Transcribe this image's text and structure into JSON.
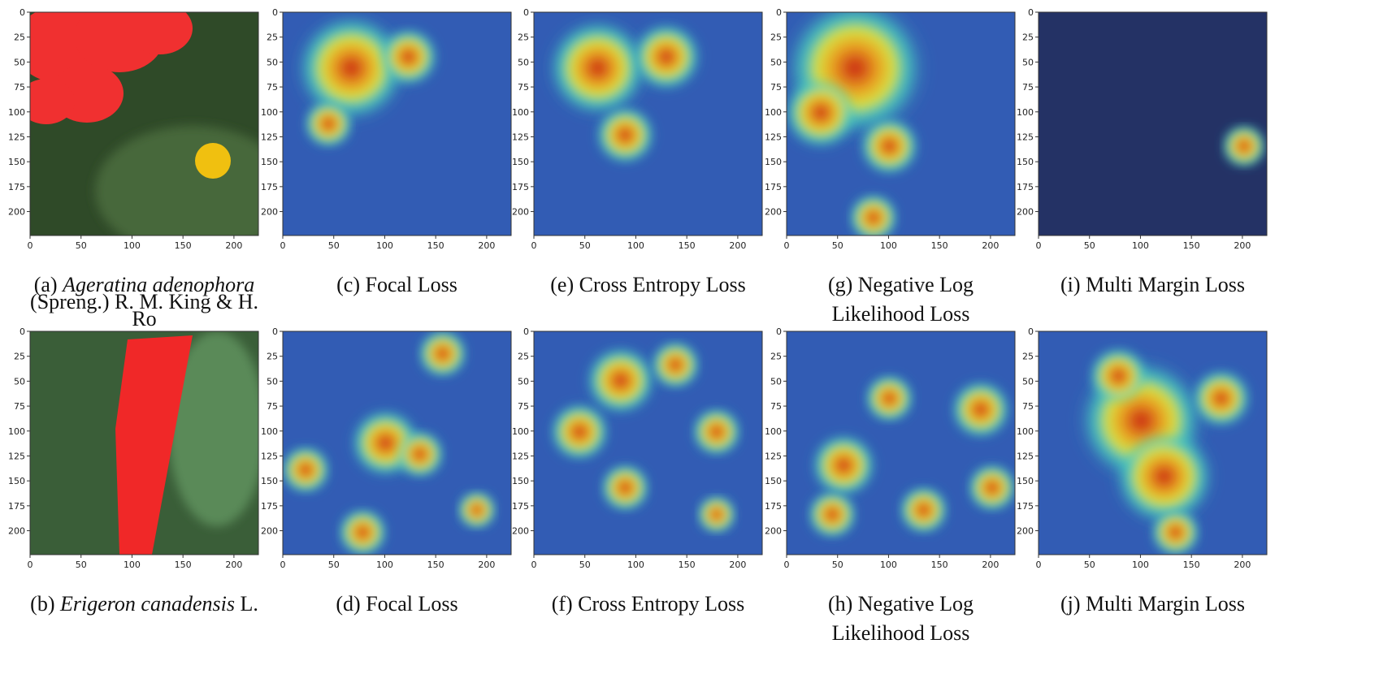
{
  "figure": {
    "xticks": [
      0,
      50,
      100,
      150,
      200
    ],
    "yticks": [
      0,
      25,
      50,
      75,
      100,
      125,
      150,
      175,
      200
    ],
    "extent": [
      0,
      224
    ],
    "panels": [
      {
        "kind": "photo-a",
        "caption": [
          [
            {
              "text": "(a) "
            },
            {
              "text": "Ageratina adenophora",
              "italic": true
            }
          ],
          [
            {
              "text": "(Spreng.) R. M. King & H."
            }
          ],
          [
            {
              "text": "Ro"
            }
          ]
        ]
      },
      {
        "kind": "heatmap",
        "caption": [
          [
            {
              "text": "(c) Focal Loss"
            }
          ]
        ]
      },
      {
        "kind": "heatmap",
        "caption": [
          [
            {
              "text": "(e) Cross Entropy Loss"
            }
          ]
        ]
      },
      {
        "kind": "heatmap",
        "caption": [
          [
            {
              "text": "(g) Negative Log"
            }
          ],
          [
            {
              "text": "Likelihood Loss"
            }
          ]
        ]
      },
      {
        "kind": "heatmap",
        "caption": [
          [
            {
              "text": "(i) Multi Margin Loss"
            }
          ]
        ]
      },
      {
        "kind": "photo-b",
        "caption": [
          [
            {
              "text": "(b) "
            },
            {
              "text": "Erigeron canadensis",
              "italic": true
            },
            {
              "text": " L."
            }
          ]
        ]
      },
      {
        "kind": "heatmap",
        "caption": [
          [
            {
              "text": "(d) Focal Loss"
            }
          ]
        ]
      },
      {
        "kind": "heatmap",
        "caption": [
          [
            {
              "text": "(f) Cross Entropy Loss"
            }
          ]
        ]
      },
      {
        "kind": "heatmap",
        "caption": [
          [
            {
              "text": "(h) Negative Log"
            }
          ],
          [
            {
              "text": "Likelihood Loss"
            }
          ]
        ]
      },
      {
        "kind": "heatmap",
        "caption": [
          [
            {
              "text": "(j) Multi Margin Loss"
            }
          ]
        ]
      }
    ]
  }
}
